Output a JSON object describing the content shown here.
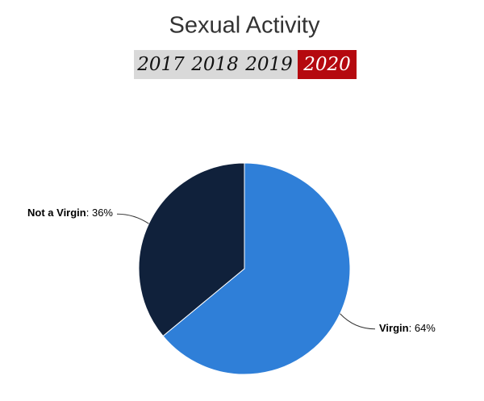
{
  "chart_data": {
    "type": "pie",
    "title": "Sexual Activity",
    "tabs": [
      "2017",
      "2018",
      "2019",
      "2020"
    ],
    "selected_tab": 3,
    "categories": [
      "Virgin",
      "Not a Virgin"
    ],
    "values": [
      64,
      36
    ],
    "value_labels": [
      "64%",
      "36%"
    ],
    "colors": [
      "#2f7fd8",
      "#10213b"
    ]
  }
}
